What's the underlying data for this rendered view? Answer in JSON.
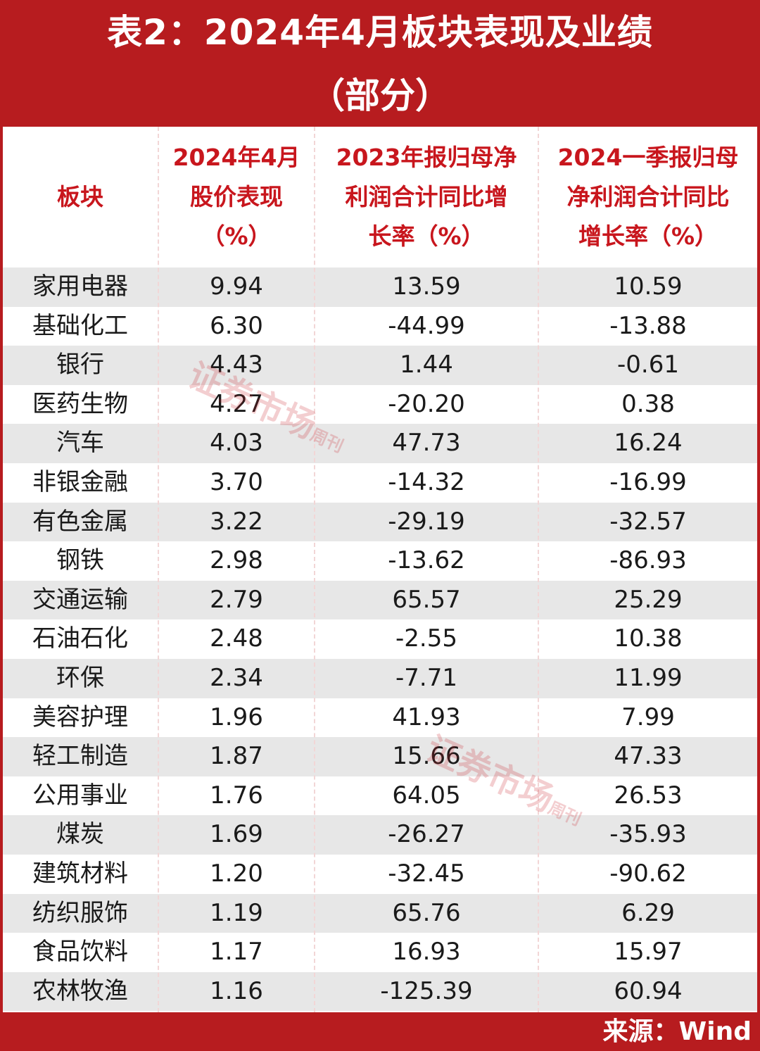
{
  "title": {
    "line1": "表2：2024年4月板块表现及业绩",
    "line2": "（部分）"
  },
  "headers": [
    [
      "板块"
    ],
    [
      "2024年4月",
      "股价表现",
      "（%）"
    ],
    [
      "2023年报归母净",
      "利润合计同比增",
      "长率（%）"
    ],
    [
      "2024一季报归母",
      "净利润合计同比",
      "增长率（%）"
    ]
  ],
  "rows": [
    [
      "家用电器",
      "9.94",
      "13.59",
      "10.59"
    ],
    [
      "基础化工",
      "6.30",
      "-44.99",
      "-13.88"
    ],
    [
      "银行",
      "4.43",
      "1.44",
      "-0.61"
    ],
    [
      "医药生物",
      "4.27",
      "-20.20",
      "0.38"
    ],
    [
      "汽车",
      "4.03",
      "47.73",
      "16.24"
    ],
    [
      "非银金融",
      "3.70",
      "-14.32",
      "-16.99"
    ],
    [
      "有色金属",
      "3.22",
      "-29.19",
      "-32.57"
    ],
    [
      "钢铁",
      "2.98",
      "-13.62",
      "-86.93"
    ],
    [
      "交通运输",
      "2.79",
      "65.57",
      "25.29"
    ],
    [
      "石油石化",
      "2.48",
      "-2.55",
      "10.38"
    ],
    [
      "环保",
      "2.34",
      "-7.71",
      "11.99"
    ],
    [
      "美容护理",
      "1.96",
      "41.93",
      "7.99"
    ],
    [
      "轻工制造",
      "1.87",
      "15.66",
      "47.33"
    ],
    [
      "公用事业",
      "1.76",
      "64.05",
      "26.53"
    ],
    [
      "煤炭",
      "1.69",
      "-26.27",
      "-35.93"
    ],
    [
      "建筑材料",
      "1.20",
      "-32.45",
      "-90.62"
    ],
    [
      "纺织服饰",
      "1.19",
      "65.76",
      "6.29"
    ],
    [
      "食品饮料",
      "1.17",
      "16.93",
      "15.97"
    ],
    [
      "农林牧渔",
      "1.16",
      "-125.39",
      "60.94"
    ]
  ],
  "watermark": {
    "main": "证券市场",
    "side": "周刊"
  },
  "footer": {
    "source": "来源：Wind"
  },
  "colors": {
    "brand_red": "#b71c1f",
    "header_text": "#c8161d",
    "row_shade": "#e7e7e7"
  }
}
